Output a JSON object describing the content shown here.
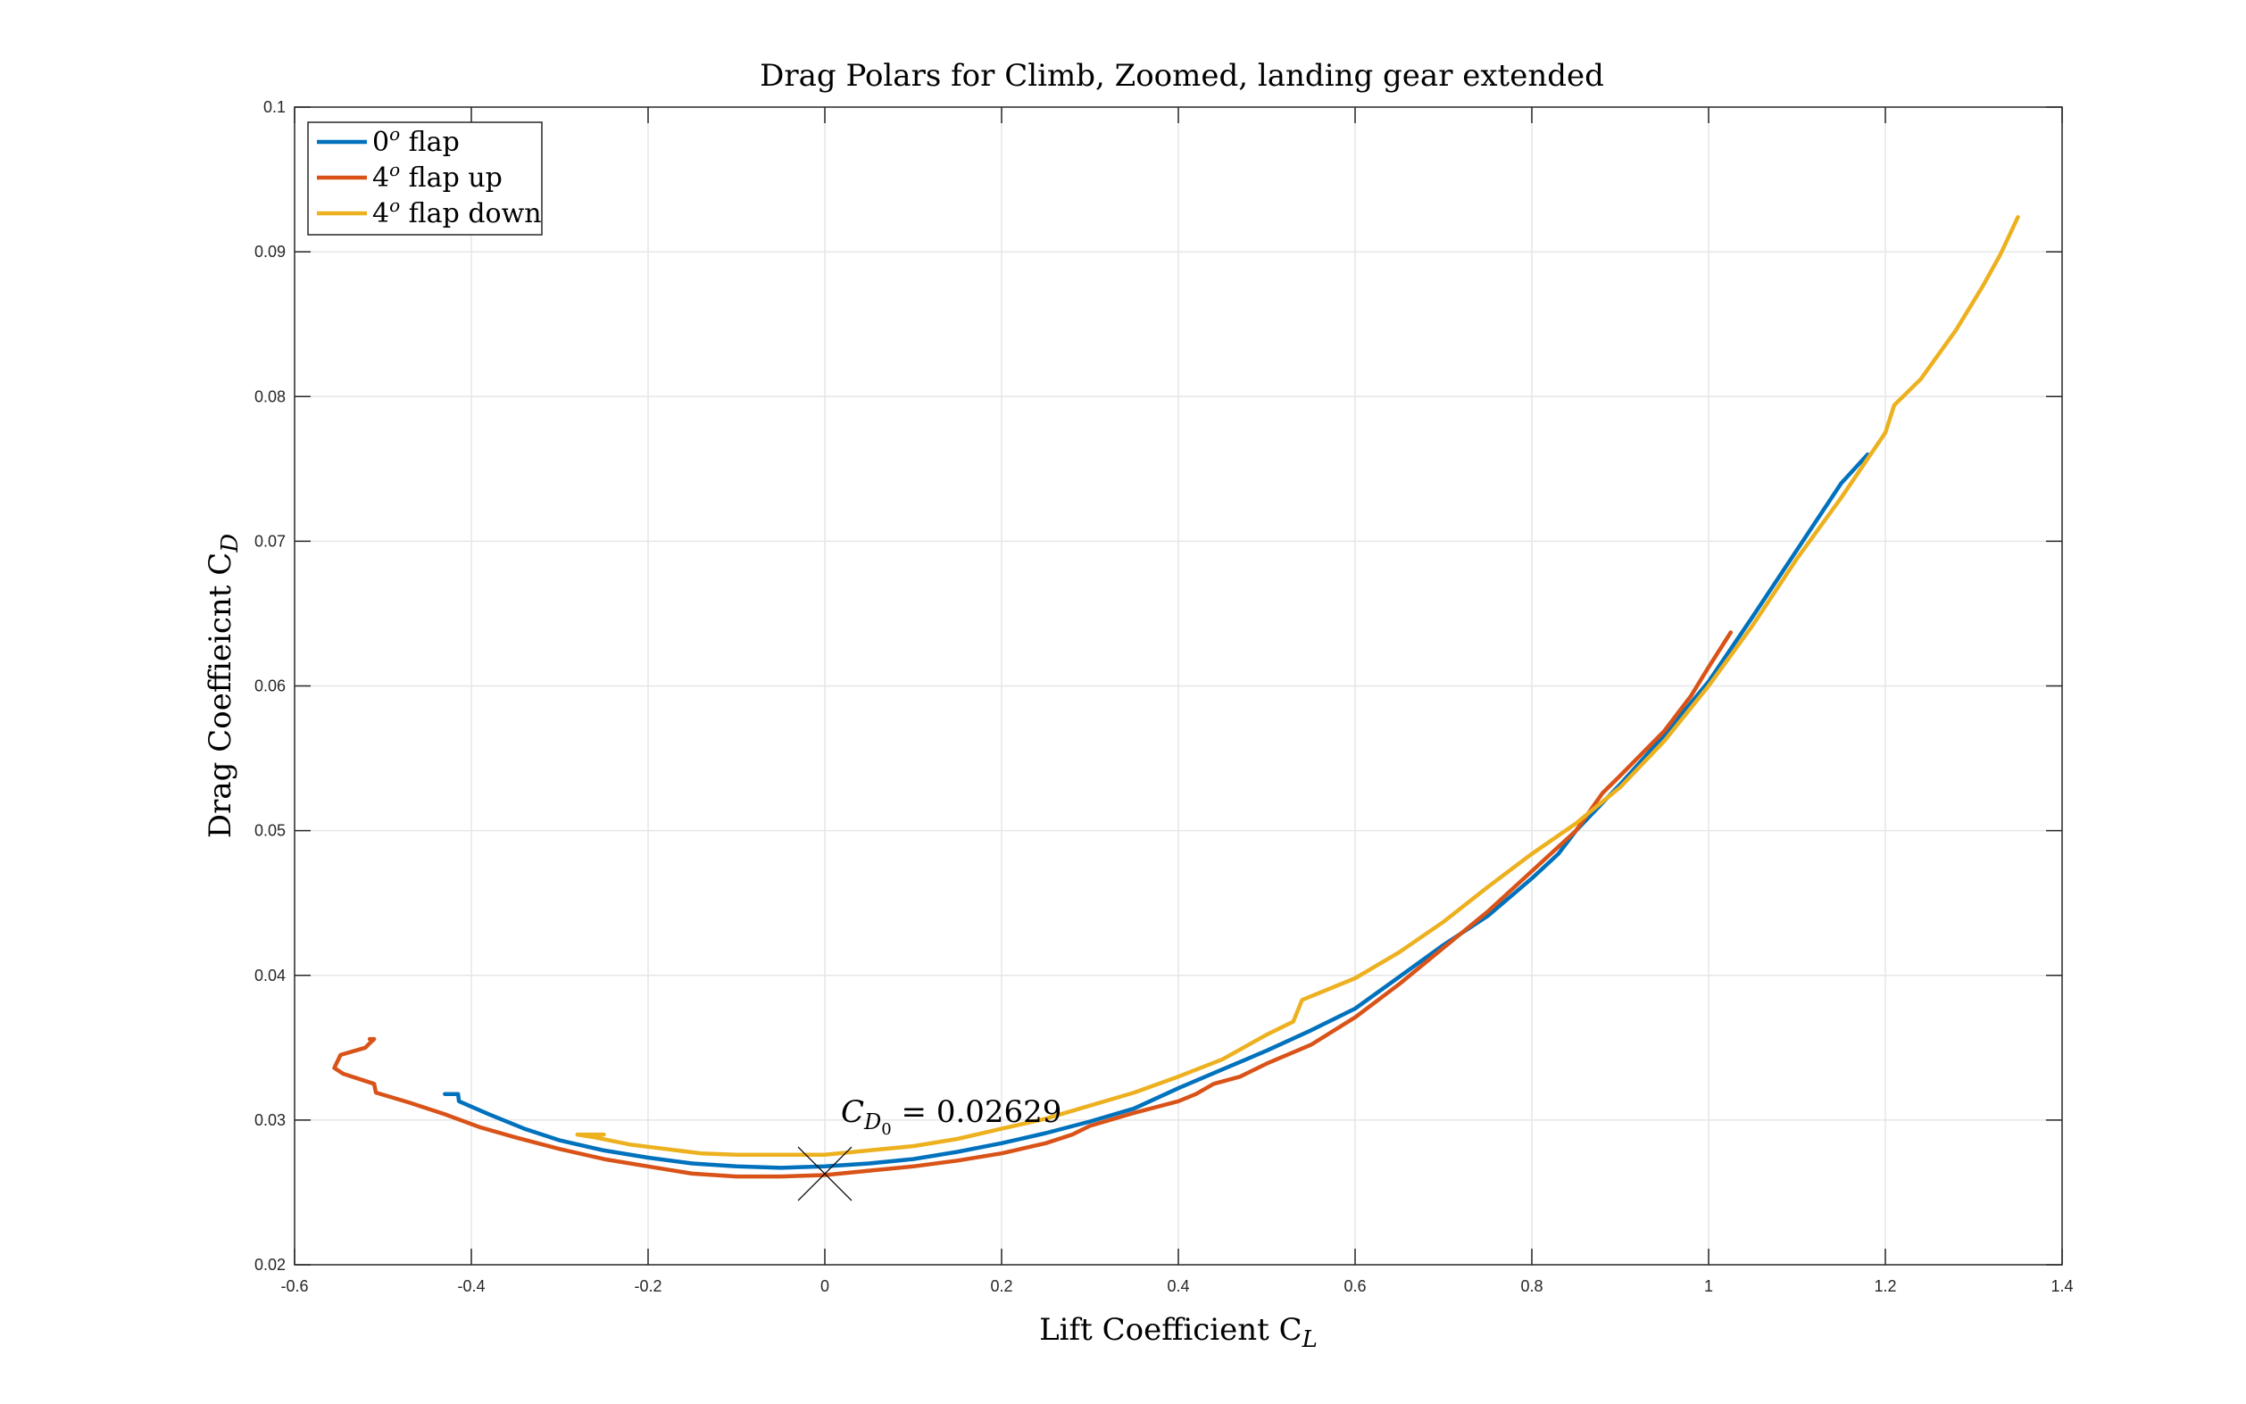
{
  "chart_data": {
    "type": "line",
    "title": "Drag Polars for Climb, Zoomed, landing gear extended",
    "xlabel": {
      "base": "Lift Coefficient C",
      "sub": "L"
    },
    "ylabel": {
      "base": "Drag Coeffieicnt C",
      "sub": "D"
    },
    "xlim": [
      -0.6,
      1.4
    ],
    "ylim": [
      0.02,
      0.1
    ],
    "x_ticks": [
      -0.6,
      -0.4,
      -0.2,
      0,
      0.2,
      0.4,
      0.6,
      0.8,
      1,
      1.2,
      1.4
    ],
    "y_ticks": [
      0.02,
      0.03,
      0.04,
      0.05,
      0.06,
      0.07,
      0.08,
      0.09,
      0.1
    ],
    "x_tick_labels": [
      "-0.6",
      "-0.4",
      "-0.2",
      "0",
      "0.2",
      "0.4",
      "0.6",
      "0.8",
      "1",
      "1.2",
      "1.4"
    ],
    "y_tick_labels": [
      "0.02",
      "0.03",
      "0.04",
      "0.05",
      "0.06",
      "0.07",
      "0.08",
      "0.09",
      "0.1"
    ],
    "grid": true,
    "legend_position": "top-left",
    "series": [
      {
        "name": "0° flap",
        "legend": {
          "num": "0",
          "sup": "o",
          "rest": " flap"
        },
        "color": "#0072BD",
        "points": [
          [
            -0.43,
            0.0318
          ],
          [
            -0.415,
            0.0318
          ],
          [
            -0.414,
            0.0313
          ],
          [
            -0.38,
            0.0304
          ],
          [
            -0.34,
            0.0294
          ],
          [
            -0.3,
            0.0286
          ],
          [
            -0.25,
            0.0279
          ],
          [
            -0.2,
            0.0274
          ],
          [
            -0.15,
            0.027
          ],
          [
            -0.1,
            0.0268
          ],
          [
            -0.05,
            0.0267
          ],
          [
            0.0,
            0.0268
          ],
          [
            0.05,
            0.027
          ],
          [
            0.1,
            0.0273
          ],
          [
            0.15,
            0.0278
          ],
          [
            0.2,
            0.0284
          ],
          [
            0.25,
            0.0291
          ],
          [
            0.3,
            0.0299
          ],
          [
            0.35,
            0.0308
          ],
          [
            0.4,
            0.0322
          ],
          [
            0.45,
            0.0335
          ],
          [
            0.5,
            0.0348
          ],
          [
            0.55,
            0.0362
          ],
          [
            0.6,
            0.0377
          ],
          [
            0.65,
            0.0399
          ],
          [
            0.7,
            0.0421
          ],
          [
            0.75,
            0.0441
          ],
          [
            0.8,
            0.0467
          ],
          [
            0.83,
            0.0484
          ],
          [
            0.85,
            0.05
          ],
          [
            0.9,
            0.0532
          ],
          [
            0.95,
            0.0566
          ],
          [
            1.0,
            0.0603
          ],
          [
            1.05,
            0.0648
          ],
          [
            1.1,
            0.0694
          ],
          [
            1.15,
            0.074
          ],
          [
            1.18,
            0.076
          ]
        ]
      },
      {
        "name": "4° flap up",
        "legend": {
          "num": "4",
          "sup": "o",
          "rest": " flap up"
        },
        "color": "#D95319",
        "points": [
          [
            -0.515,
            0.0356
          ],
          [
            -0.51,
            0.0356
          ],
          [
            -0.515,
            0.0353
          ],
          [
            -0.52,
            0.035
          ],
          [
            -0.548,
            0.0345
          ],
          [
            -0.555,
            0.0336
          ],
          [
            -0.545,
            0.0332
          ],
          [
            -0.51,
            0.0325
          ],
          [
            -0.508,
            0.0319
          ],
          [
            -0.47,
            0.0312
          ],
          [
            -0.43,
            0.0304
          ],
          [
            -0.39,
            0.0295
          ],
          [
            -0.35,
            0.0288
          ],
          [
            -0.3,
            0.028
          ],
          [
            -0.25,
            0.0273
          ],
          [
            -0.2,
            0.0268
          ],
          [
            -0.15,
            0.0263
          ],
          [
            -0.1,
            0.0261
          ],
          [
            -0.05,
            0.0261
          ],
          [
            0.0,
            0.0262
          ],
          [
            0.05,
            0.0265
          ],
          [
            0.1,
            0.0268
          ],
          [
            0.15,
            0.0272
          ],
          [
            0.2,
            0.0277
          ],
          [
            0.25,
            0.0284
          ],
          [
            0.28,
            0.029
          ],
          [
            0.3,
            0.0296
          ],
          [
            0.35,
            0.0305
          ],
          [
            0.4,
            0.0313
          ],
          [
            0.42,
            0.0318
          ],
          [
            0.44,
            0.0325
          ],
          [
            0.47,
            0.033
          ],
          [
            0.5,
            0.0339
          ],
          [
            0.55,
            0.0352
          ],
          [
            0.6,
            0.0371
          ],
          [
            0.65,
            0.0394
          ],
          [
            0.7,
            0.0419
          ],
          [
            0.75,
            0.0444
          ],
          [
            0.8,
            0.0472
          ],
          [
            0.85,
            0.05
          ],
          [
            0.88,
            0.0526
          ],
          [
            0.9,
            0.0538
          ],
          [
            0.95,
            0.0569
          ],
          [
            0.98,
            0.0593
          ],
          [
            1.0,
            0.0613
          ],
          [
            1.025,
            0.0637
          ]
        ]
      },
      {
        "name": "4° flap down",
        "legend": {
          "num": "4",
          "sup": "o",
          "rest": " flap down"
        },
        "color": "#EDB120",
        "points": [
          [
            -0.25,
            0.029
          ],
          [
            -0.28,
            0.029
          ],
          [
            -0.26,
            0.0288
          ],
          [
            -0.22,
            0.0283
          ],
          [
            -0.18,
            0.028
          ],
          [
            -0.14,
            0.0277
          ],
          [
            -0.1,
            0.0276
          ],
          [
            -0.05,
            0.0276
          ],
          [
            0.0,
            0.0276
          ],
          [
            0.05,
            0.0279
          ],
          [
            0.1,
            0.0282
          ],
          [
            0.15,
            0.0287
          ],
          [
            0.2,
            0.0294
          ],
          [
            0.25,
            0.0301
          ],
          [
            0.3,
            0.031
          ],
          [
            0.35,
            0.0319
          ],
          [
            0.4,
            0.033
          ],
          [
            0.45,
            0.0342
          ],
          [
            0.5,
            0.0359
          ],
          [
            0.53,
            0.0368
          ],
          [
            0.54,
            0.0383
          ],
          [
            0.6,
            0.0398
          ],
          [
            0.65,
            0.0416
          ],
          [
            0.7,
            0.0437
          ],
          [
            0.75,
            0.0461
          ],
          [
            0.8,
            0.0484
          ],
          [
            0.85,
            0.0505
          ],
          [
            0.9,
            0.053
          ],
          [
            0.95,
            0.0562
          ],
          [
            1.0,
            0.06
          ],
          [
            1.05,
            0.0642
          ],
          [
            1.1,
            0.0688
          ],
          [
            1.15,
            0.073
          ],
          [
            1.2,
            0.0775
          ],
          [
            1.21,
            0.0794
          ],
          [
            1.24,
            0.0812
          ],
          [
            1.28,
            0.0846
          ],
          [
            1.31,
            0.0876
          ],
          [
            1.33,
            0.0898
          ],
          [
            1.35,
            0.0924
          ]
        ]
      }
    ],
    "annotations": [
      {
        "marker": "x",
        "x": 0.0,
        "y": 0.02629,
        "label_base": "C",
        "label_sub": "D",
        "label_subsub": "0",
        "label_rest": " = 0.02629"
      }
    ]
  }
}
